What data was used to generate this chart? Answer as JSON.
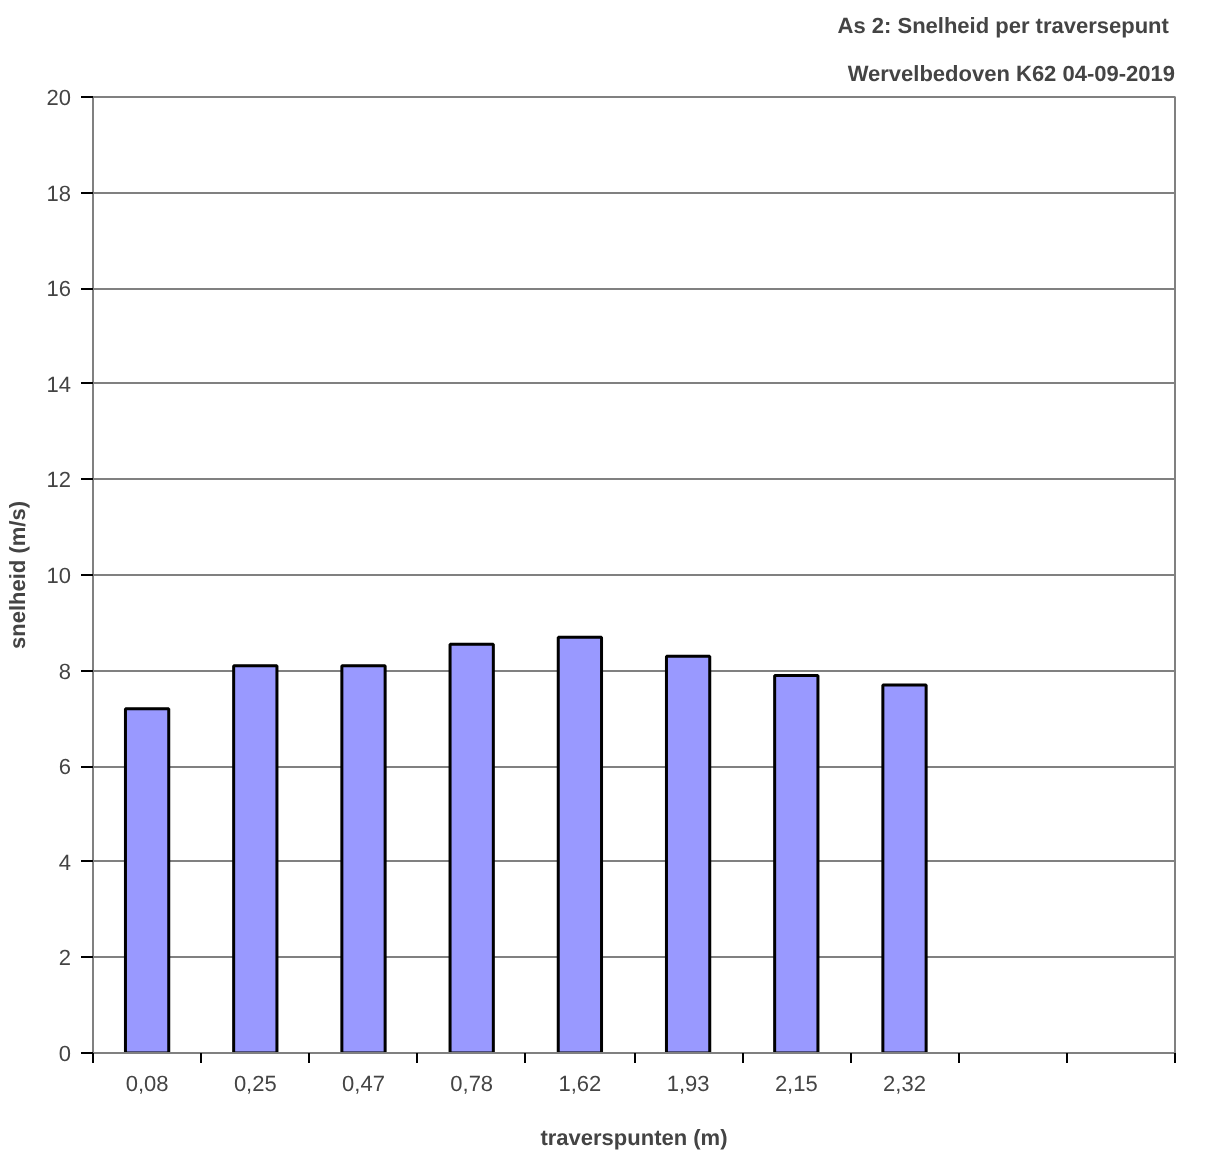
{
  "chart_data": {
    "type": "bar",
    "title": "As 2: Snelheid  per traversepunt",
    "subtitle": "Wervelbedoven K62 04-09-2019",
    "xlabel": "traverspunten (m)",
    "ylabel": "snelheid (m/s)",
    "categories": [
      "0,08",
      "0,25",
      "0,47",
      "0,78",
      "1,62",
      "1,93",
      "2,15",
      "2,32",
      null,
      null
    ],
    "values": [
      7.2,
      8.1,
      8.1,
      8.55,
      8.7,
      8.3,
      7.9,
      7.7,
      null,
      null
    ],
    "color": "#9999ff",
    "ylim": [
      0,
      20
    ],
    "yticks": [
      0,
      2,
      4,
      6,
      8,
      10,
      12,
      14,
      16,
      18,
      20
    ],
    "grid": "y"
  }
}
